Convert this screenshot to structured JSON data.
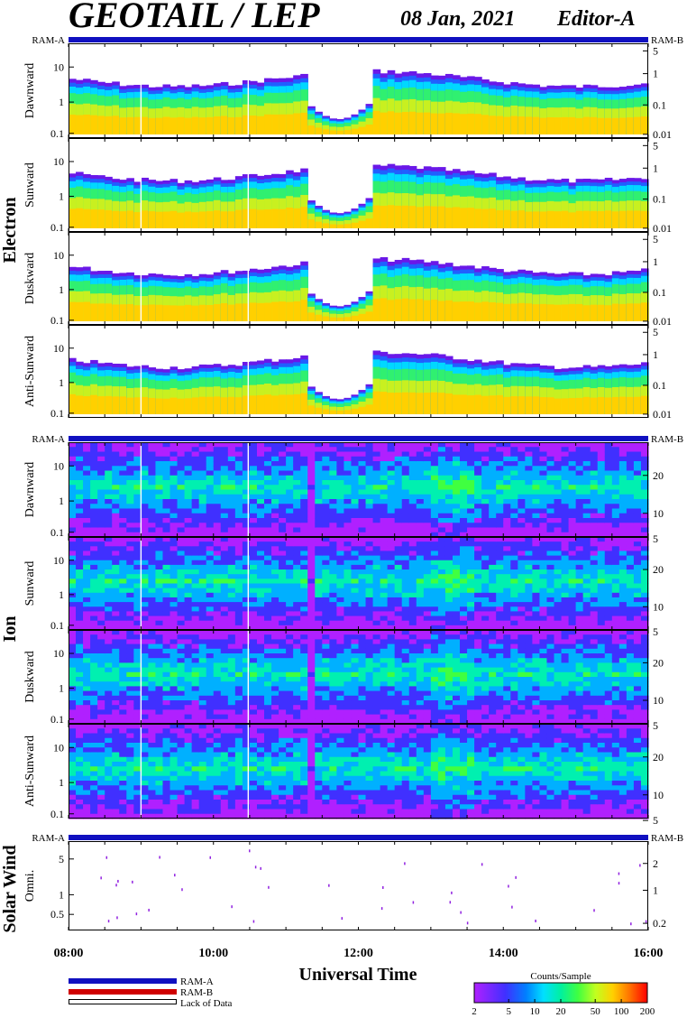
{
  "header": {
    "title": "GEOTAIL / LEP",
    "date": "08 Jan, 2021",
    "editor": "Editor-A"
  },
  "groups": {
    "electron": "Electron",
    "ion": "Ion",
    "solar_wind": "Solar Wind"
  },
  "ram": {
    "a": "RAM-A",
    "b": "RAM-B"
  },
  "axes": {
    "x_title": "Universal Time",
    "x_ticks": [
      "08:00",
      "10:00",
      "12:00",
      "14:00",
      "16:00"
    ]
  },
  "legend": {
    "ram_a": "RAM-A",
    "ram_b": "RAM-B",
    "lack": "Lack of Data"
  },
  "colorbar": {
    "title": "Counts/Sample",
    "ticks": [
      "2",
      "5",
      "10",
      "20",
      "50",
      "100",
      "200"
    ],
    "scale": "log"
  },
  "colors": {
    "ram_bar": "#1010c0",
    "ram_b": "#d00000"
  },
  "chart_data": [
    {
      "type": "heatmap",
      "name": "Dawnward",
      "group": "Electron",
      "y_ticks": [
        "10",
        "1",
        "0.1"
      ],
      "y_right_ticks": [
        "5",
        "1",
        "0.1",
        "0.01"
      ],
      "time_range": [
        "08:00",
        "16:00"
      ]
    },
    {
      "type": "heatmap",
      "name": "Sunward",
      "group": "Electron",
      "y_ticks": [
        "10",
        "1",
        "0.1"
      ],
      "y_right_ticks": [
        "5",
        "1",
        "0.1",
        "0.01"
      ],
      "time_range": [
        "08:00",
        "16:00"
      ]
    },
    {
      "type": "heatmap",
      "name": "Duskward",
      "group": "Electron",
      "y_ticks": [
        "10",
        "1",
        "0.1"
      ],
      "y_right_ticks": [
        "5",
        "1",
        "0.1",
        "0.01"
      ],
      "time_range": [
        "08:00",
        "16:00"
      ]
    },
    {
      "type": "heatmap",
      "name": "Anti-Sunward",
      "group": "Electron",
      "y_ticks": [
        "10",
        "1",
        "0.1"
      ],
      "y_right_ticks": [
        "5",
        "1",
        "0.1",
        "0.01"
      ],
      "time_range": [
        "08:00",
        "16:00"
      ]
    },
    {
      "type": "heatmap",
      "name": "Dawnward",
      "group": "Ion",
      "y_ticks": [
        "10",
        "1",
        "0.1"
      ],
      "y_right_ticks": [
        "20",
        "10",
        "5"
      ],
      "time_range": [
        "08:00",
        "16:00"
      ]
    },
    {
      "type": "heatmap",
      "name": "Sunward",
      "group": "Ion",
      "y_ticks": [
        "10",
        "1",
        "0.1"
      ],
      "y_right_ticks": [
        "20",
        "10",
        "5"
      ],
      "time_range": [
        "08:00",
        "16:00"
      ]
    },
    {
      "type": "heatmap",
      "name": "Duskward",
      "group": "Ion",
      "y_ticks": [
        "10",
        "1",
        "0.1"
      ],
      "y_right_ticks": [
        "20",
        "10",
        "5"
      ],
      "time_range": [
        "08:00",
        "16:00"
      ]
    },
    {
      "type": "heatmap",
      "name": "Anti-Sunward",
      "group": "Ion",
      "y_ticks": [
        "10",
        "1",
        "0.1"
      ],
      "y_right_ticks": [
        "20",
        "10",
        "5"
      ],
      "time_range": [
        "08:00",
        "16:00"
      ]
    },
    {
      "type": "heatmap",
      "name": "Omni.",
      "group": "Solar Wind",
      "y_ticks": [
        "5",
        "1",
        "0.5"
      ],
      "y_right_ticks": [
        "2",
        "1",
        "0.2"
      ],
      "time_range": [
        "08:00",
        "16:00"
      ]
    }
  ]
}
